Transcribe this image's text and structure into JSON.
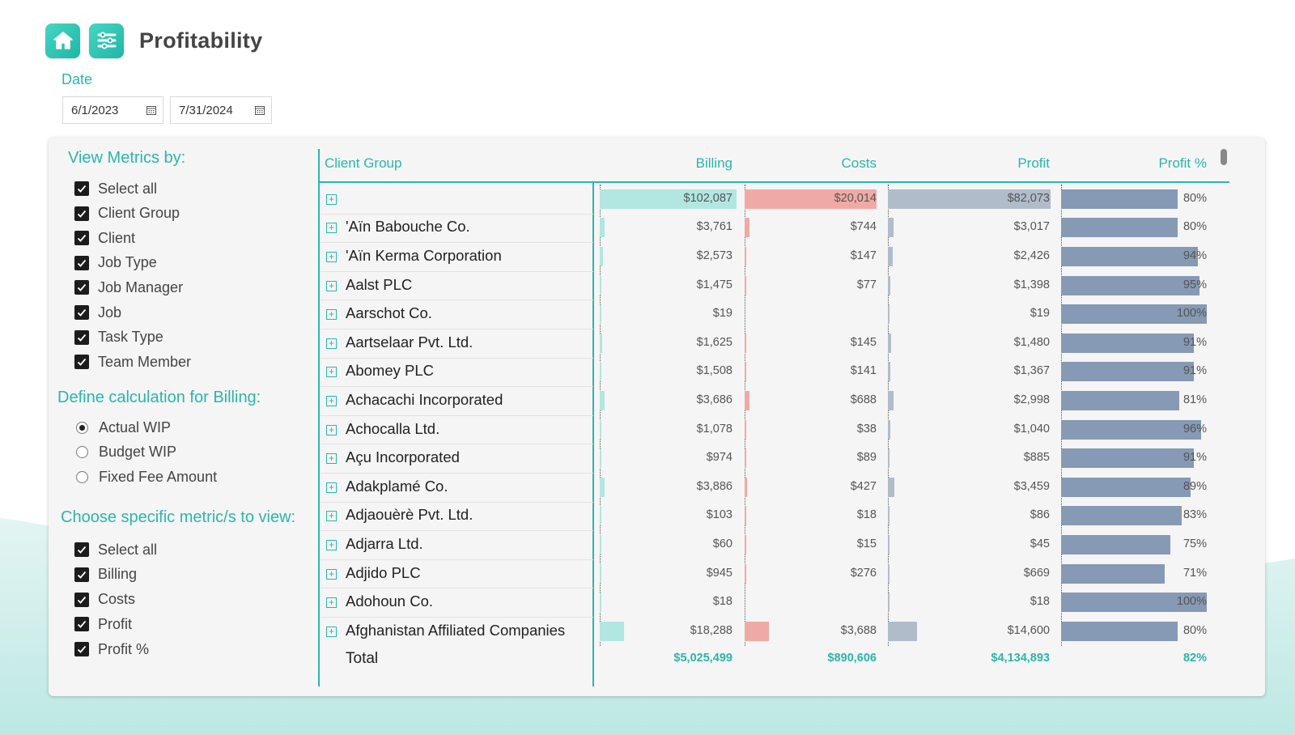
{
  "header": {
    "title": "Profitability",
    "home_icon": "home-icon",
    "menu_icon": "sliders-icon"
  },
  "date_filter": {
    "label": "Date",
    "start": "6/1/2023",
    "end": "7/31/2024"
  },
  "view_metrics": {
    "title": "View Metrics by:",
    "items": [
      {
        "label": "Select all",
        "checked": true
      },
      {
        "label": "Client Group",
        "checked": true
      },
      {
        "label": "Client",
        "checked": true
      },
      {
        "label": "Job Type",
        "checked": true
      },
      {
        "label": "Job Manager",
        "checked": true
      },
      {
        "label": "Job",
        "checked": true
      },
      {
        "label": "Task Type",
        "checked": true
      },
      {
        "label": "Team Member",
        "checked": true
      }
    ]
  },
  "billing_calc": {
    "title": "Define calculation for Billing:",
    "options": [
      {
        "label": "Actual WIP",
        "selected": true
      },
      {
        "label": "Budget WIP",
        "selected": false
      },
      {
        "label": "Fixed Fee Amount",
        "selected": false
      }
    ]
  },
  "metrics": {
    "title": "Choose specific metric/s to view:",
    "items": [
      {
        "label": "Select all",
        "checked": true
      },
      {
        "label": "Billing",
        "checked": true
      },
      {
        "label": "Costs",
        "checked": true
      },
      {
        "label": "Profit",
        "checked": true
      },
      {
        "label": "Profit %",
        "checked": true
      }
    ]
  },
  "table": {
    "columns": [
      "Client Group",
      "Billing",
      "Costs",
      "Profit",
      "Profit %"
    ],
    "colors": {
      "billing": "#b2e6e1",
      "costs": "#f0aaa5",
      "profit": "#b1bccb",
      "profit_pct": "#8699b5",
      "accent": "#2bb5ad"
    },
    "rows": [
      {
        "name": "",
        "billing": "$102,087",
        "costs": "$20,014",
        "profit": "$82,073",
        "pct": "80%",
        "b": 102087,
        "c": 20014,
        "p": 82073,
        "pv": 80
      },
      {
        "name": "'Aïn Babouche Co.",
        "billing": "$3,761",
        "costs": "$744",
        "profit": "$3,017",
        "pct": "80%",
        "b": 3761,
        "c": 744,
        "p": 3017,
        "pv": 80
      },
      {
        "name": "'Aïn Kerma Corporation",
        "billing": "$2,573",
        "costs": "$147",
        "profit": "$2,426",
        "pct": "94%",
        "b": 2573,
        "c": 147,
        "p": 2426,
        "pv": 94
      },
      {
        "name": "Aalst PLC",
        "billing": "$1,475",
        "costs": "$77",
        "profit": "$1,398",
        "pct": "95%",
        "b": 1475,
        "c": 77,
        "p": 1398,
        "pv": 95
      },
      {
        "name": "Aarschot Co.",
        "billing": "$19",
        "costs": "",
        "profit": "$19",
        "pct": "100%",
        "b": 19,
        "c": 0,
        "p": 19,
        "pv": 100
      },
      {
        "name": "Aartselaar Pvt. Ltd.",
        "billing": "$1,625",
        "costs": "$145",
        "profit": "$1,480",
        "pct": "91%",
        "b": 1625,
        "c": 145,
        "p": 1480,
        "pv": 91
      },
      {
        "name": "Abomey PLC",
        "billing": "$1,508",
        "costs": "$141",
        "profit": "$1,367",
        "pct": "91%",
        "b": 1508,
        "c": 141,
        "p": 1367,
        "pv": 91
      },
      {
        "name": "Achacachi Incorporated",
        "billing": "$3,686",
        "costs": "$688",
        "profit": "$2,998",
        "pct": "81%",
        "b": 3686,
        "c": 688,
        "p": 2998,
        "pv": 81
      },
      {
        "name": "Achocalla Ltd.",
        "billing": "$1,078",
        "costs": "$38",
        "profit": "$1,040",
        "pct": "96%",
        "b": 1078,
        "c": 38,
        "p": 1040,
        "pv": 96
      },
      {
        "name": "Açu Incorporated",
        "billing": "$974",
        "costs": "$89",
        "profit": "$885",
        "pct": "91%",
        "b": 974,
        "c": 89,
        "p": 885,
        "pv": 91
      },
      {
        "name": "Adakplamé Co.",
        "billing": "$3,886",
        "costs": "$427",
        "profit": "$3,459",
        "pct": "89%",
        "b": 3886,
        "c": 427,
        "p": 3459,
        "pv": 89
      },
      {
        "name": "Adjaouèrè Pvt. Ltd.",
        "billing": "$103",
        "costs": "$18",
        "profit": "$86",
        "pct": "83%",
        "b": 103,
        "c": 18,
        "p": 86,
        "pv": 83
      },
      {
        "name": "Adjarra Ltd.",
        "billing": "$60",
        "costs": "$15",
        "profit": "$45",
        "pct": "75%",
        "b": 60,
        "c": 15,
        "p": 45,
        "pv": 75
      },
      {
        "name": "Adjido PLC",
        "billing": "$945",
        "costs": "$276",
        "profit": "$669",
        "pct": "71%",
        "b": 945,
        "c": 276,
        "p": 669,
        "pv": 71
      },
      {
        "name": "Adohoun Co.",
        "billing": "$18",
        "costs": "",
        "profit": "$18",
        "pct": "100%",
        "b": 18,
        "c": 0,
        "p": 18,
        "pv": 100
      },
      {
        "name": "Afghanistan Affiliated Companies",
        "billing": "$18,288",
        "costs": "$3,688",
        "profit": "$14,600",
        "pct": "80%",
        "b": 18288,
        "c": 3688,
        "p": 14600,
        "pv": 80
      }
    ],
    "total": {
      "label": "Total",
      "billing": "$5,025,499",
      "costs": "$890,606",
      "profit": "$4,134,893",
      "pct": "82%"
    }
  }
}
